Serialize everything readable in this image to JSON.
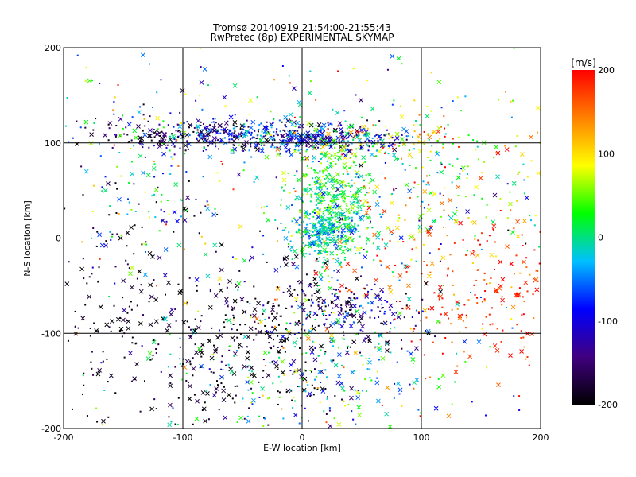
{
  "chart_data": {
    "type": "scatter",
    "title": "Tromsø 20140919 21:54:00-21:55:43",
    "subtitle": "RwPretec (8p) EXPERIMENTAL SKYMAP",
    "xlabel": "E-W location [km]",
    "ylabel": "N-S location [km]",
    "xlim": [
      -200,
      200
    ],
    "ylim": [
      -200,
      200
    ],
    "xticks": [
      -200,
      -100,
      0,
      100,
      200
    ],
    "yticks": [
      -200,
      -100,
      0,
      100,
      200
    ],
    "xtick_labels": [
      "-200",
      "-100",
      "0",
      "100",
      "200"
    ],
    "ytick_labels": [
      "-200",
      "-100",
      "0",
      "100",
      "200"
    ],
    "grid": true,
    "colorbar": {
      "label": "[m/s]",
      "range": [
        -200,
        200
      ],
      "ticks": [
        200,
        100,
        0,
        -100,
        -200
      ],
      "tick_labels": [
        "200",
        "100",
        "0",
        "-100",
        "-200"
      ],
      "colors": [
        "#000000",
        "#400080",
        "#0000ff",
        "#00c0ff",
        "#00ff00",
        "#ffff00",
        "#ff8000",
        "#ff0000"
      ]
    },
    "marker_types": [
      "x",
      "dot"
    ],
    "clusters": [
      {
        "x": -80,
        "y": 110,
        "sx": 45,
        "sy": 9,
        "n": 220,
        "v": -170,
        "vs": 40
      },
      {
        "x": -35,
        "y": 108,
        "sx": 40,
        "sy": 8,
        "n": 200,
        "v": -60,
        "vs": 40
      },
      {
        "x": 20,
        "y": 103,
        "sx": 35,
        "sy": 6,
        "n": 180,
        "v": -120,
        "vs": 40
      },
      {
        "x": 60,
        "y": 100,
        "sx": 40,
        "sy": 10,
        "n": 110,
        "v": 80,
        "vs": 80
      },
      {
        "x": 25,
        "y": 40,
        "sx": 18,
        "sy": 35,
        "n": 450,
        "v": 15,
        "vs": 35
      },
      {
        "x": 20,
        "y": 5,
        "sx": 15,
        "sy": 12,
        "n": 200,
        "v": -20,
        "vs": 35
      },
      {
        "x": 110,
        "y": 60,
        "sx": 60,
        "sy": 50,
        "n": 260,
        "v": 60,
        "vs": 70
      },
      {
        "x": 140,
        "y": -50,
        "sx": 50,
        "sy": 50,
        "n": 260,
        "v": 180,
        "vs": 35
      },
      {
        "x": -40,
        "y": -110,
        "sx": 45,
        "sy": 45,
        "n": 320,
        "v": -185,
        "vs": 30
      },
      {
        "x": 40,
        "y": -75,
        "sx": 30,
        "sy": 14,
        "n": 170,
        "v": -130,
        "vs": 60
      },
      {
        "x": 10,
        "y": -140,
        "sx": 60,
        "sy": 35,
        "n": 240,
        "v": 5,
        "vs": 70
      },
      {
        "x": -150,
        "y": -100,
        "sx": 35,
        "sy": 60,
        "n": 160,
        "v": -190,
        "vs": 25
      },
      {
        "x": -130,
        "y": 60,
        "sx": 45,
        "sy": 60,
        "n": 170,
        "v": -30,
        "vs": 90
      },
      {
        "x": 0,
        "y": 0,
        "sx": 120,
        "sy": 120,
        "n": 320,
        "v": 0,
        "vs": 110
      }
    ]
  }
}
